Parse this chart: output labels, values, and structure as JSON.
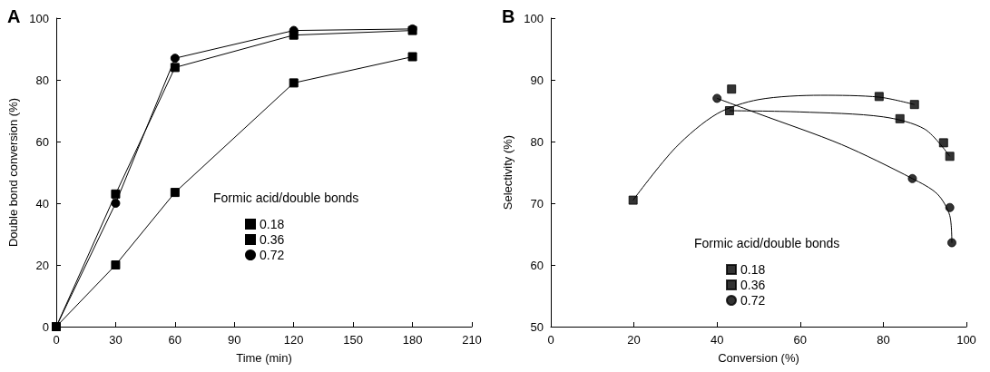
{
  "chart_data": [
    {
      "type": "line",
      "title": "A",
      "xlabel": "Time (min)",
      "ylabel": "Double bond conversion (%)",
      "legend_title": "Formic acid/double bonds",
      "legend": "center right",
      "x": [
        0,
        30,
        60,
        120,
        180
      ],
      "xlim": [
        0,
        210
      ],
      "xticks": [
        0,
        30,
        60,
        90,
        120,
        150,
        180,
        210
      ],
      "ylim": [
        0,
        100
      ],
      "yticks": [
        0,
        20,
        40,
        60,
        80,
        100
      ],
      "grid": false,
      "series": [
        {
          "name": "0.18",
          "color": "#000000",
          "marker": "square",
          "values": [
            0,
            20,
            43.5,
            79,
            87.5
          ]
        },
        {
          "name": "0.36",
          "color": "#000000",
          "marker": "square",
          "values": [
            0,
            43,
            84,
            94.5,
            96
          ]
        },
        {
          "name": "0.72",
          "color": "#000000",
          "marker": "circle",
          "values": [
            0,
            40,
            87,
            96,
            96.5
          ]
        }
      ]
    },
    {
      "type": "scatter",
      "title": "B",
      "xlabel": "Conversion (%)",
      "ylabel": "Selectivity (%)",
      "legend_title": "Formic acid/double bonds",
      "legend": "bottom",
      "xlim": [
        0,
        100
      ],
      "xticks": [
        0,
        20,
        40,
        60,
        80,
        100
      ],
      "ylim": [
        50,
        100
      ],
      "yticks": [
        50,
        60,
        70,
        80,
        90,
        100
      ],
      "grid": false,
      "series": [
        {
          "name": "0.18",
          "color": "#000000",
          "marker": "square",
          "x": [
            19.8,
            43.5,
            79,
            87.5
          ],
          "values": [
            70.5,
            88.5,
            87.3,
            86
          ]
        },
        {
          "name": "0.36",
          "color": "#000000",
          "marker": "square",
          "x": [
            43,
            84,
            94.5,
            96
          ],
          "values": [
            85,
            83.7,
            79.8,
            77.6
          ]
        },
        {
          "name": "0.72",
          "color": "#000000",
          "marker": "circle",
          "x": [
            40,
            87,
            96,
            96.5
          ],
          "values": [
            87,
            74,
            69.3,
            63.6
          ]
        },
        {
          "type": "line",
          "color": "#000000",
          "marker": "none",
          "x": [
            19.8,
            30,
            40,
            50,
            65,
            79,
            87.5
          ],
          "values": [
            70.5,
            79,
            84.5,
            86.8,
            87.5,
            87.2,
            86
          ]
        },
        {
          "type": "line",
          "color": "#000000",
          "marker": "none",
          "x": [
            43,
            60,
            80,
            90,
            96
          ],
          "values": [
            85,
            84.8,
            84,
            82,
            77.6
          ]
        },
        {
          "type": "line",
          "color": "#000000",
          "marker": "none",
          "x": [
            40,
            50,
            70,
            87,
            93,
            96,
            96.5
          ],
          "values": [
            87,
            84.5,
            79.5,
            74,
            71.5,
            68,
            63.6
          ]
        }
      ]
    }
  ]
}
